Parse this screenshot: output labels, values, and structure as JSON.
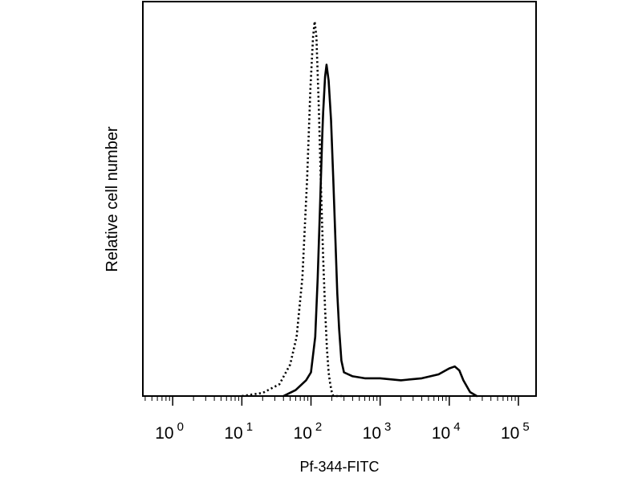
{
  "chart_data": {
    "type": "line",
    "title": "",
    "xlabel": "Pf-344-FITC",
    "ylabel": "Relative cell number",
    "x_scale": "log",
    "xlim": [
      0.37,
      180000
    ],
    "ylim": [
      0,
      100
    ],
    "x_ticks": [
      {
        "base": "10",
        "exp": "0",
        "value": 1
      },
      {
        "base": "10",
        "exp": "1",
        "value": 10
      },
      {
        "base": "10",
        "exp": "2",
        "value": 100
      },
      {
        "base": "10",
        "exp": "3",
        "value": 1000
      },
      {
        "base": "10",
        "exp": "4",
        "value": 10000
      },
      {
        "base": "10",
        "exp": "5",
        "value": 100000
      }
    ],
    "series": [
      {
        "style": "dotted",
        "color": "#000000",
        "x": [
          10,
          20,
          35,
          50,
          62,
          75,
          88,
          98,
          107,
          113,
          120,
          130,
          140,
          150,
          160,
          170,
          180,
          190,
          200,
          210,
          240,
          300
        ],
        "y": [
          0,
          0.8,
          3,
          8,
          15,
          30,
          55,
          78,
          91,
          95,
          91,
          73,
          52,
          35,
          22,
          12,
          6,
          3,
          1,
          0,
          0,
          0
        ]
      },
      {
        "style": "solid",
        "color": "#000000",
        "x": [
          40,
          60,
          85,
          100,
          115,
          125,
          135,
          145,
          150,
          160,
          168,
          180,
          195,
          210,
          225,
          240,
          255,
          275,
          300,
          400,
          600,
          1000,
          2000,
          4000,
          7000,
          10000,
          12000,
          14000,
          16000,
          20000,
          25000
        ],
        "y": [
          0,
          1.5,
          4,
          6,
          15,
          30,
          48,
          65,
          72,
          81,
          84,
          80,
          70,
          55,
          40,
          26,
          17,
          9,
          6,
          5,
          4.5,
          4.5,
          4,
          4.5,
          5.5,
          7,
          7.5,
          6.5,
          4,
          1,
          0
        ]
      }
    ]
  }
}
